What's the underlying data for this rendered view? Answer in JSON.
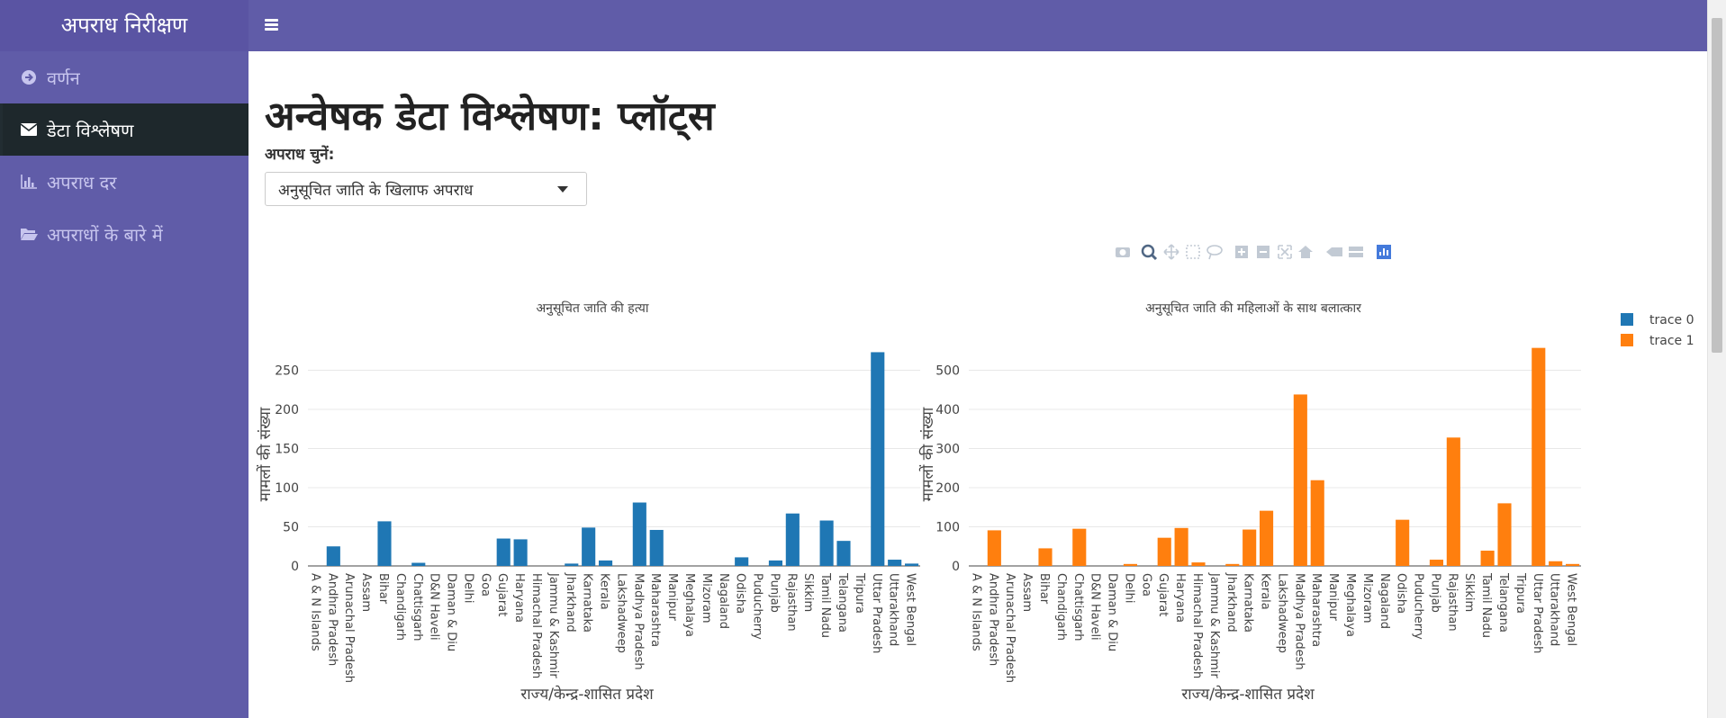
{
  "app": {
    "brand": "अपराध निरीक्षण"
  },
  "sidebar": {
    "items": [
      {
        "label": "वर्णन",
        "icon": "arrow-circle-right-icon",
        "active": false
      },
      {
        "label": "डेटा विश्लेषण",
        "icon": "envelope-icon",
        "active": true
      },
      {
        "label": "अपराध दर",
        "icon": "bar-chart-icon",
        "active": false
      },
      {
        "label": "अपराधों के बारे में",
        "icon": "folder-open-icon",
        "active": false
      }
    ]
  },
  "main": {
    "title": "अन्वेषक डेटा विश्लेषण: प्लॉट्स",
    "select_label": "अपराध चुनें:",
    "selected_crime": "अनुसूचित जाति के खिलाफ अपराध"
  },
  "modebar": {
    "icons": [
      "camera-icon",
      "zoom-icon",
      "pan-icon",
      "box-select-icon",
      "lasso-icon",
      "zoom-in-icon",
      "zoom-out-icon",
      "autoscale-icon",
      "reset-axes-icon",
      "spike-lines-icon",
      "compare-hover-icon",
      "plotly-logo-icon"
    ]
  },
  "colors": {
    "trace0": "#1f77b4",
    "trace1": "#ff7f0e",
    "sidebar": "#605ca8",
    "header": "#605ca8"
  },
  "chart_data": {
    "type": "bar",
    "categories": [
      "A & N Islands",
      "Andhra Pradesh",
      "Arunachal Pradesh",
      "Assam",
      "Bihar",
      "Chandigarh",
      "Chattisgarh",
      "D&N Haveli",
      "Daman & Diu",
      "Delhi",
      "Goa",
      "Gujarat",
      "Haryana",
      "Himachal Pradesh",
      "Jammu & Kashmir",
      "Jharkhand",
      "Karnataka",
      "Kerala",
      "Lakshadweep",
      "Madhya Pradesh",
      "Maharashtra",
      "Manipur",
      "Meghalaya",
      "Mizoram",
      "Nagaland",
      "Odisha",
      "Puducherry",
      "Punjab",
      "Rajasthan",
      "Sikkim",
      "Tamil Nadu",
      "Telangana",
      "Tripura",
      "Uttar Pradesh",
      "Uttarakhand",
      "West Bengal"
    ],
    "legend": [
      "trace 0",
      "trace 1"
    ],
    "legend_position": "top-right",
    "subplots": [
      {
        "title": "अनुसूचित जाति की हत्या",
        "xlabel": "राज्य/केन्द्र-शासित प्रदेश",
        "ylabel": "मामलों की संख्या",
        "series": "trace 0",
        "color": "#1f77b4",
        "ylim": [
          0,
          285
        ],
        "yticks": [
          0,
          50,
          100,
          150,
          200,
          250
        ],
        "values": [
          0,
          25,
          0,
          0,
          57,
          0,
          4,
          0,
          0,
          0,
          0,
          35,
          34,
          0,
          0,
          3,
          49,
          7,
          0,
          81,
          46,
          0,
          0,
          0,
          0,
          11,
          0,
          7,
          67,
          0,
          58,
          32,
          0,
          273,
          8,
          3
        ]
      },
      {
        "title": "अनुसूचित जाति की महिलाओं के साथ बलात्कार",
        "xlabel": "राज्य/केन्द्र-शासित प्रदेश",
        "ylabel": "मामलों की संख्या",
        "series": "trace 1",
        "color": "#ff7f0e",
        "ylim": [
          0,
          570
        ],
        "yticks": [
          0,
          100,
          200,
          300,
          400,
          500
        ],
        "values": [
          0,
          91,
          0,
          0,
          45,
          0,
          95,
          0,
          0,
          5,
          0,
          72,
          97,
          9,
          0,
          5,
          93,
          141,
          0,
          438,
          219,
          0,
          0,
          0,
          0,
          118,
          0,
          16,
          328,
          0,
          39,
          160,
          0,
          557,
          12,
          5
        ]
      }
    ]
  }
}
